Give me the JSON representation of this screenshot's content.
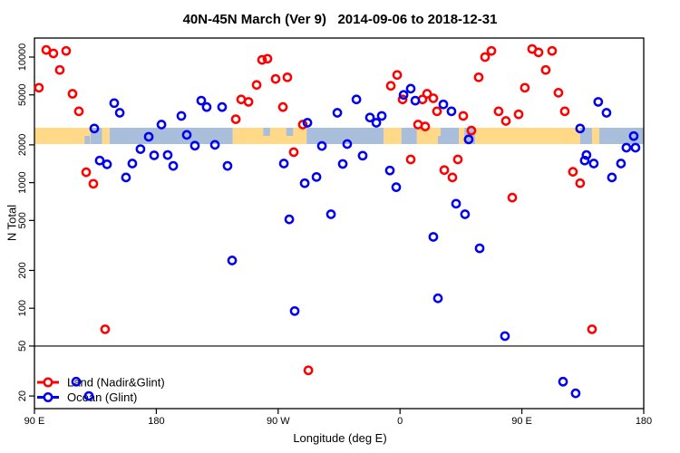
{
  "chart_data": {
    "type": "scatter",
    "title": "40N-45N March (Ver 9)   2014-09-06 to 2018-12-31",
    "xlabel": "Longitude (deg E)",
    "ylabel": "N Total",
    "x_axis": {
      "note": "longitude axis spans 450 degrees eastward starting at 90E",
      "range_deg": [
        0,
        450
      ],
      "ticks": [
        {
          "deg": 0,
          "label": "90 E"
        },
        {
          "deg": 90,
          "label": "180"
        },
        {
          "deg": 180,
          "label": "90 W"
        },
        {
          "deg": 270,
          "label": "0"
        },
        {
          "deg": 360,
          "label": "90 E"
        },
        {
          "deg": 450,
          "label": "180"
        }
      ]
    },
    "y_axis": {
      "scale": "log",
      "tick_values": [
        10000,
        5000,
        2000,
        1000,
        500,
        200,
        100,
        50,
        20
      ],
      "range": [
        14000,
        14
      ]
    },
    "reference_line": {
      "n": 50,
      "color": "#000000"
    },
    "map_band": {
      "land_color": "#ffd987",
      "ocean_color": "#a9bedb",
      "n_top": 2600,
      "n_bottom": 2200,
      "segments": [
        {
          "x0": 0,
          "x1": 41.5,
          "surface": "land"
        },
        {
          "x0": 41.5,
          "x1": 50,
          "surface": "ocean"
        },
        {
          "x0": 50,
          "x1": 55.5,
          "surface": "land"
        },
        {
          "x0": 55.5,
          "x1": 146.5,
          "surface": "ocean"
        },
        {
          "x0": 146.5,
          "x1": 201,
          "surface": "land"
        },
        {
          "x0": 201,
          "x1": 258,
          "surface": "ocean"
        },
        {
          "x0": 258,
          "x1": 271,
          "surface": "land"
        },
        {
          "x0": 271,
          "x1": 282.5,
          "surface": "ocean"
        },
        {
          "x0": 282.5,
          "x1": 298,
          "surface": "land"
        },
        {
          "x0": 298,
          "x1": 313.5,
          "surface": "ocean"
        },
        {
          "x0": 313.5,
          "x1": 317.5,
          "surface": "land"
        },
        {
          "x0": 317.5,
          "x1": 325.5,
          "surface": "ocean"
        },
        {
          "x0": 325.5,
          "x1": 403,
          "surface": "land"
        },
        {
          "x0": 403,
          "x1": 411.8,
          "surface": "ocean"
        },
        {
          "x0": 411.8,
          "x1": 417.2,
          "surface": "land"
        },
        {
          "x0": 417.2,
          "x1": 450,
          "surface": "ocean"
        }
      ],
      "specks": [
        {
          "x0": 169,
          "x1": 174,
          "surface": "ocean",
          "pos": "top"
        },
        {
          "x0": 186,
          "x1": 191,
          "surface": "ocean",
          "pos": "top"
        },
        {
          "x0": 37,
          "x1": 41,
          "surface": "ocean",
          "pos": "bottom"
        },
        {
          "x0": 296,
          "x1": 300,
          "surface": "land",
          "pos": "top"
        }
      ]
    },
    "series": [
      {
        "name": "Land (Nadir&Glint)",
        "color": "#ff0000",
        "points": [
          [
            8.7,
            11400
          ],
          [
            14,
            10700
          ],
          [
            23.4,
            11200
          ],
          [
            18.7,
            7900
          ],
          [
            3.3,
            5700
          ],
          [
            28.1,
            5100
          ],
          [
            32.8,
            3700
          ],
          [
            148.7,
            3200
          ],
          [
            38.2,
            1210
          ],
          [
            43.5,
            980
          ],
          [
            52.2,
            68
          ],
          [
            168.1,
            9500
          ],
          [
            172.1,
            9700
          ],
          [
            164.1,
            6000
          ],
          [
            178.1,
            6700
          ],
          [
            186.8,
            6900
          ],
          [
            152.7,
            4600
          ],
          [
            158.1,
            4400
          ],
          [
            183.5,
            4000
          ],
          [
            198.2,
            2900
          ],
          [
            191.5,
            1750
          ],
          [
            263.2,
            5900
          ],
          [
            267.9,
            7200
          ],
          [
            271.9,
            4600
          ],
          [
            286.6,
            4600
          ],
          [
            290,
            5100
          ],
          [
            294.6,
            4700
          ],
          [
            297.3,
            3700
          ],
          [
            283.3,
            2900
          ],
          [
            288.6,
            2800
          ],
          [
            277.9,
            1530
          ],
          [
            312.7,
            1530
          ],
          [
            302.7,
            1260
          ],
          [
            308.7,
            1100
          ],
          [
            352.9,
            760
          ],
          [
            397.7,
            1220
          ],
          [
            403,
            990
          ],
          [
            332.8,
            10000
          ],
          [
            337.5,
            11200
          ],
          [
            367.6,
            11600
          ],
          [
            372.3,
            10900
          ],
          [
            382.3,
            11200
          ],
          [
            377.6,
            7900
          ],
          [
            328.1,
            6900
          ],
          [
            362.2,
            5700
          ],
          [
            387,
            5200
          ],
          [
            316.7,
            3400
          ],
          [
            342.8,
            3700
          ],
          [
            348.2,
            3100
          ],
          [
            357.6,
            3500
          ],
          [
            391.7,
            3700
          ],
          [
            322.7,
            2600
          ],
          [
            202.3,
            32
          ],
          [
            411.8,
            68
          ]
        ]
      },
      {
        "name": "Ocean (Glint)",
        "color": "#0000ee",
        "points": [
          [
            58.9,
            4300
          ],
          [
            63,
            3600
          ],
          [
            123.2,
            4500
          ],
          [
            127.2,
            4000
          ],
          [
            138.6,
            4000
          ],
          [
            108.5,
            3400
          ],
          [
            44.2,
            2700
          ],
          [
            93.8,
            2900
          ],
          [
            112.5,
            2400
          ],
          [
            84.4,
            2320
          ],
          [
            118.5,
            1970
          ],
          [
            133.3,
            2000
          ],
          [
            78.3,
            1850
          ],
          [
            88.4,
            1650
          ],
          [
            98.4,
            1660
          ],
          [
            48.2,
            1500
          ],
          [
            53.6,
            1400
          ],
          [
            72.3,
            1420
          ],
          [
            102.5,
            1360
          ],
          [
            67.6,
            1100
          ],
          [
            142.6,
            1360
          ],
          [
            146,
            240
          ],
          [
            277.9,
            5600
          ],
          [
            272.6,
            5000
          ],
          [
            281.3,
            4500
          ],
          [
            237.8,
            4600
          ],
          [
            223.7,
            3600
          ],
          [
            247.8,
            3300
          ],
          [
            256.5,
            3400
          ],
          [
            252.5,
            3000
          ],
          [
            201.6,
            3000
          ],
          [
            212.3,
            1960
          ],
          [
            231,
            2030
          ],
          [
            242.4,
            1640
          ],
          [
            227.7,
            1410
          ],
          [
            184.2,
            1420
          ],
          [
            208.3,
            1110
          ],
          [
            199.6,
            990
          ],
          [
            262.5,
            1250
          ],
          [
            267.2,
            920
          ],
          [
            219,
            560
          ],
          [
            188.2,
            510
          ],
          [
            294.6,
            370
          ],
          [
            298,
            120
          ],
          [
            311.4,
            680
          ],
          [
            318,
            560
          ],
          [
            328.8,
            300
          ],
          [
            406.4,
            1500
          ],
          [
            413.1,
            1420
          ],
          [
            433.2,
            1420
          ],
          [
            426.5,
            1100
          ],
          [
            416.4,
            4400
          ],
          [
            422.5,
            3600
          ],
          [
            403,
            2700
          ],
          [
            320.7,
            2210
          ],
          [
            442.6,
            2350
          ],
          [
            443.9,
            1900
          ],
          [
            437.2,
            1900
          ],
          [
            407.7,
            1660
          ],
          [
            302,
            4200
          ],
          [
            308,
            3700
          ],
          [
            192.2,
            95
          ],
          [
            30.8,
            26
          ],
          [
            40.2,
            20
          ],
          [
            347.5,
            60
          ],
          [
            390.4,
            26
          ],
          [
            399.7,
            21
          ]
        ]
      }
    ],
    "legend": {
      "position": "bottom-left",
      "entries": [
        "Land (Nadir&Glint)",
        "Ocean (Glint)"
      ]
    }
  }
}
